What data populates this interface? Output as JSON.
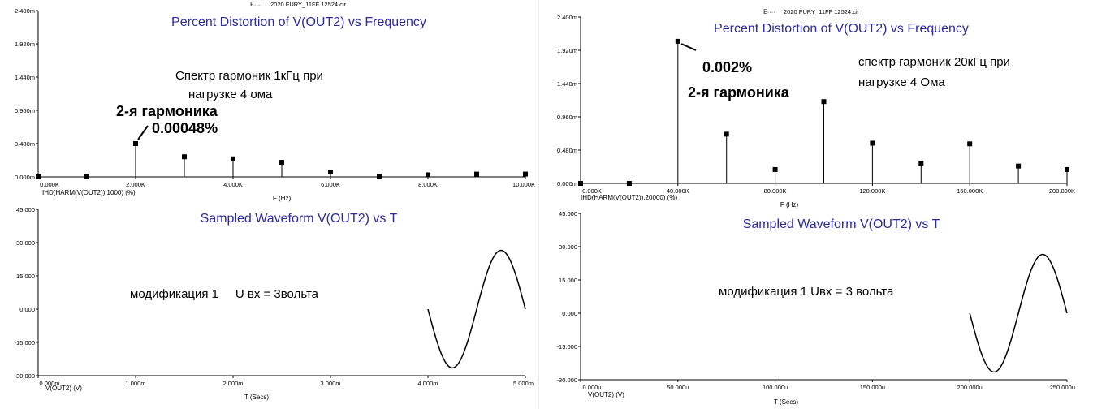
{
  "left": {
    "header": "2020 FURY_11FF 12524.cir",
    "top": {
      "title": "Percent Distortion of V(OUT2) vs Frequency",
      "expr_label": "IHD(HARM(V(OUT2)),1000) (%)",
      "xlabel": "F (Hz)",
      "y_ticks": [
        "2.400m",
        "1.920m",
        "1.440m",
        "0.960m",
        "0.480m",
        "0.000m"
      ],
      "x_ticks": [
        "0.000K",
        "2.000K",
        "4.000K",
        "6.000K",
        "8.000K",
        "10.000K"
      ],
      "note_line1": "Спектр гармоник 1кГц  при",
      "note_line2": "нагрузке 4 ома",
      "harmonic_label": "2-я гармоника",
      "harmonic_value": "0.00048%"
    },
    "bottom": {
      "title": "Sampled Waveform  V(OUT2) vs T",
      "expr_label": "V(OUT2) (V)",
      "xlabel": "T (Secs)",
      "y_ticks": [
        "45.000",
        "30.000",
        "15.000",
        "0.000",
        "-15.000",
        "-30.000"
      ],
      "x_ticks": [
        "0.000m",
        "1.000m",
        "2.000m",
        "3.000m",
        "4.000m",
        "5.000m"
      ],
      "note": "модификация 1     U вх = 3вольта"
    }
  },
  "right": {
    "header": "2020 FURY_11FF 12524.cir",
    "top": {
      "title": "Percent Distortion of V(OUT2) vs Frequency",
      "expr_label": "IHD(HARM(V(OUT2)),20000) (%)",
      "xlabel": "F (Hz)",
      "y_ticks": [
        "2.400m",
        "1.920m",
        "1.440m",
        "0.960m",
        "0.480m",
        "0.000m"
      ],
      "x_ticks": [
        "0.000K",
        "40.000K",
        "80.000K",
        "120.000K",
        "160.000K",
        "200.000K"
      ],
      "note_line1": "спектр гармоник 20кГц при",
      "note_line2": "нагрузке 4 Ома",
      "harmonic_value": "0.002%",
      "harmonic_label": "2-я гармоника"
    },
    "bottom": {
      "title": "Sampled Waveform  V(OUT2) vs T",
      "expr_label": "V(OUT2) (V)",
      "xlabel": "T (Secs)",
      "y_ticks": [
        "45.000",
        "30.000",
        "15.000",
        "0.000",
        "-15.000",
        "-30.000"
      ],
      "x_ticks": [
        "0.000u",
        "50.000u",
        "100.000u",
        "150.000u",
        "200.000u",
        "250.000u"
      ],
      "note": "модификация 1 Uвх = 3 вольта"
    }
  },
  "chart_data": [
    {
      "type": "scatter",
      "title": "Percent Distortion of V(OUT2) vs Frequency",
      "xlabel": "F (Hz)",
      "ylabel": "IHD(HARM(V(OUT2)),1000) (%)",
      "xlim": [
        0,
        10000
      ],
      "ylim": [
        0,
        0.0024
      ],
      "x": [
        0,
        1000,
        2000,
        3000,
        4000,
        5000,
        6000,
        7000,
        8000,
        9000,
        10000
      ],
      "y": [
        0,
        0,
        0.00048,
        0.00029,
        0.00026,
        0.00021,
        7e-05,
        1e-05,
        3e-05,
        4e-05,
        4e-05
      ],
      "style": "stem"
    },
    {
      "type": "line",
      "title": "Sampled Waveform  V(OUT2) vs T",
      "xlabel": "T (Secs)",
      "ylabel": "V(OUT2) (V)",
      "xlim": [
        0,
        0.005
      ],
      "ylim": [
        -30,
        45
      ],
      "x": [
        0.004,
        0.00425,
        0.0045,
        0.00475,
        0.005
      ],
      "y": [
        0,
        -26.5,
        0,
        26.5,
        0
      ]
    },
    {
      "type": "scatter",
      "title": "Percent Distortion of V(OUT2) vs Frequency",
      "xlabel": "F (Hz)",
      "ylabel": "IHD(HARM(V(OUT2)),20000) (%)",
      "xlim": [
        0,
        200000
      ],
      "ylim": [
        0,
        0.0024
      ],
      "x": [
        0,
        20000,
        40000,
        60000,
        80000,
        100000,
        120000,
        140000,
        160000,
        180000,
        200000
      ],
      "y": [
        0,
        0,
        0.00205,
        0.00071,
        0.0002,
        0.00118,
        0.00058,
        0.00029,
        0.00057,
        0.00025,
        0.0002
      ],
      "style": "stem"
    },
    {
      "type": "line",
      "title": "Sampled Waveform  V(OUT2) vs T",
      "xlabel": "T (Secs)",
      "ylabel": "V(OUT2) (V)",
      "xlim": [
        0,
        0.00025
      ],
      "ylim": [
        -30,
        45
      ],
      "x": [
        0.0002,
        0.0002125,
        0.000225,
        0.0002375,
        0.00025
      ],
      "y": [
        0,
        -26.5,
        0,
        26.5,
        0
      ]
    }
  ]
}
